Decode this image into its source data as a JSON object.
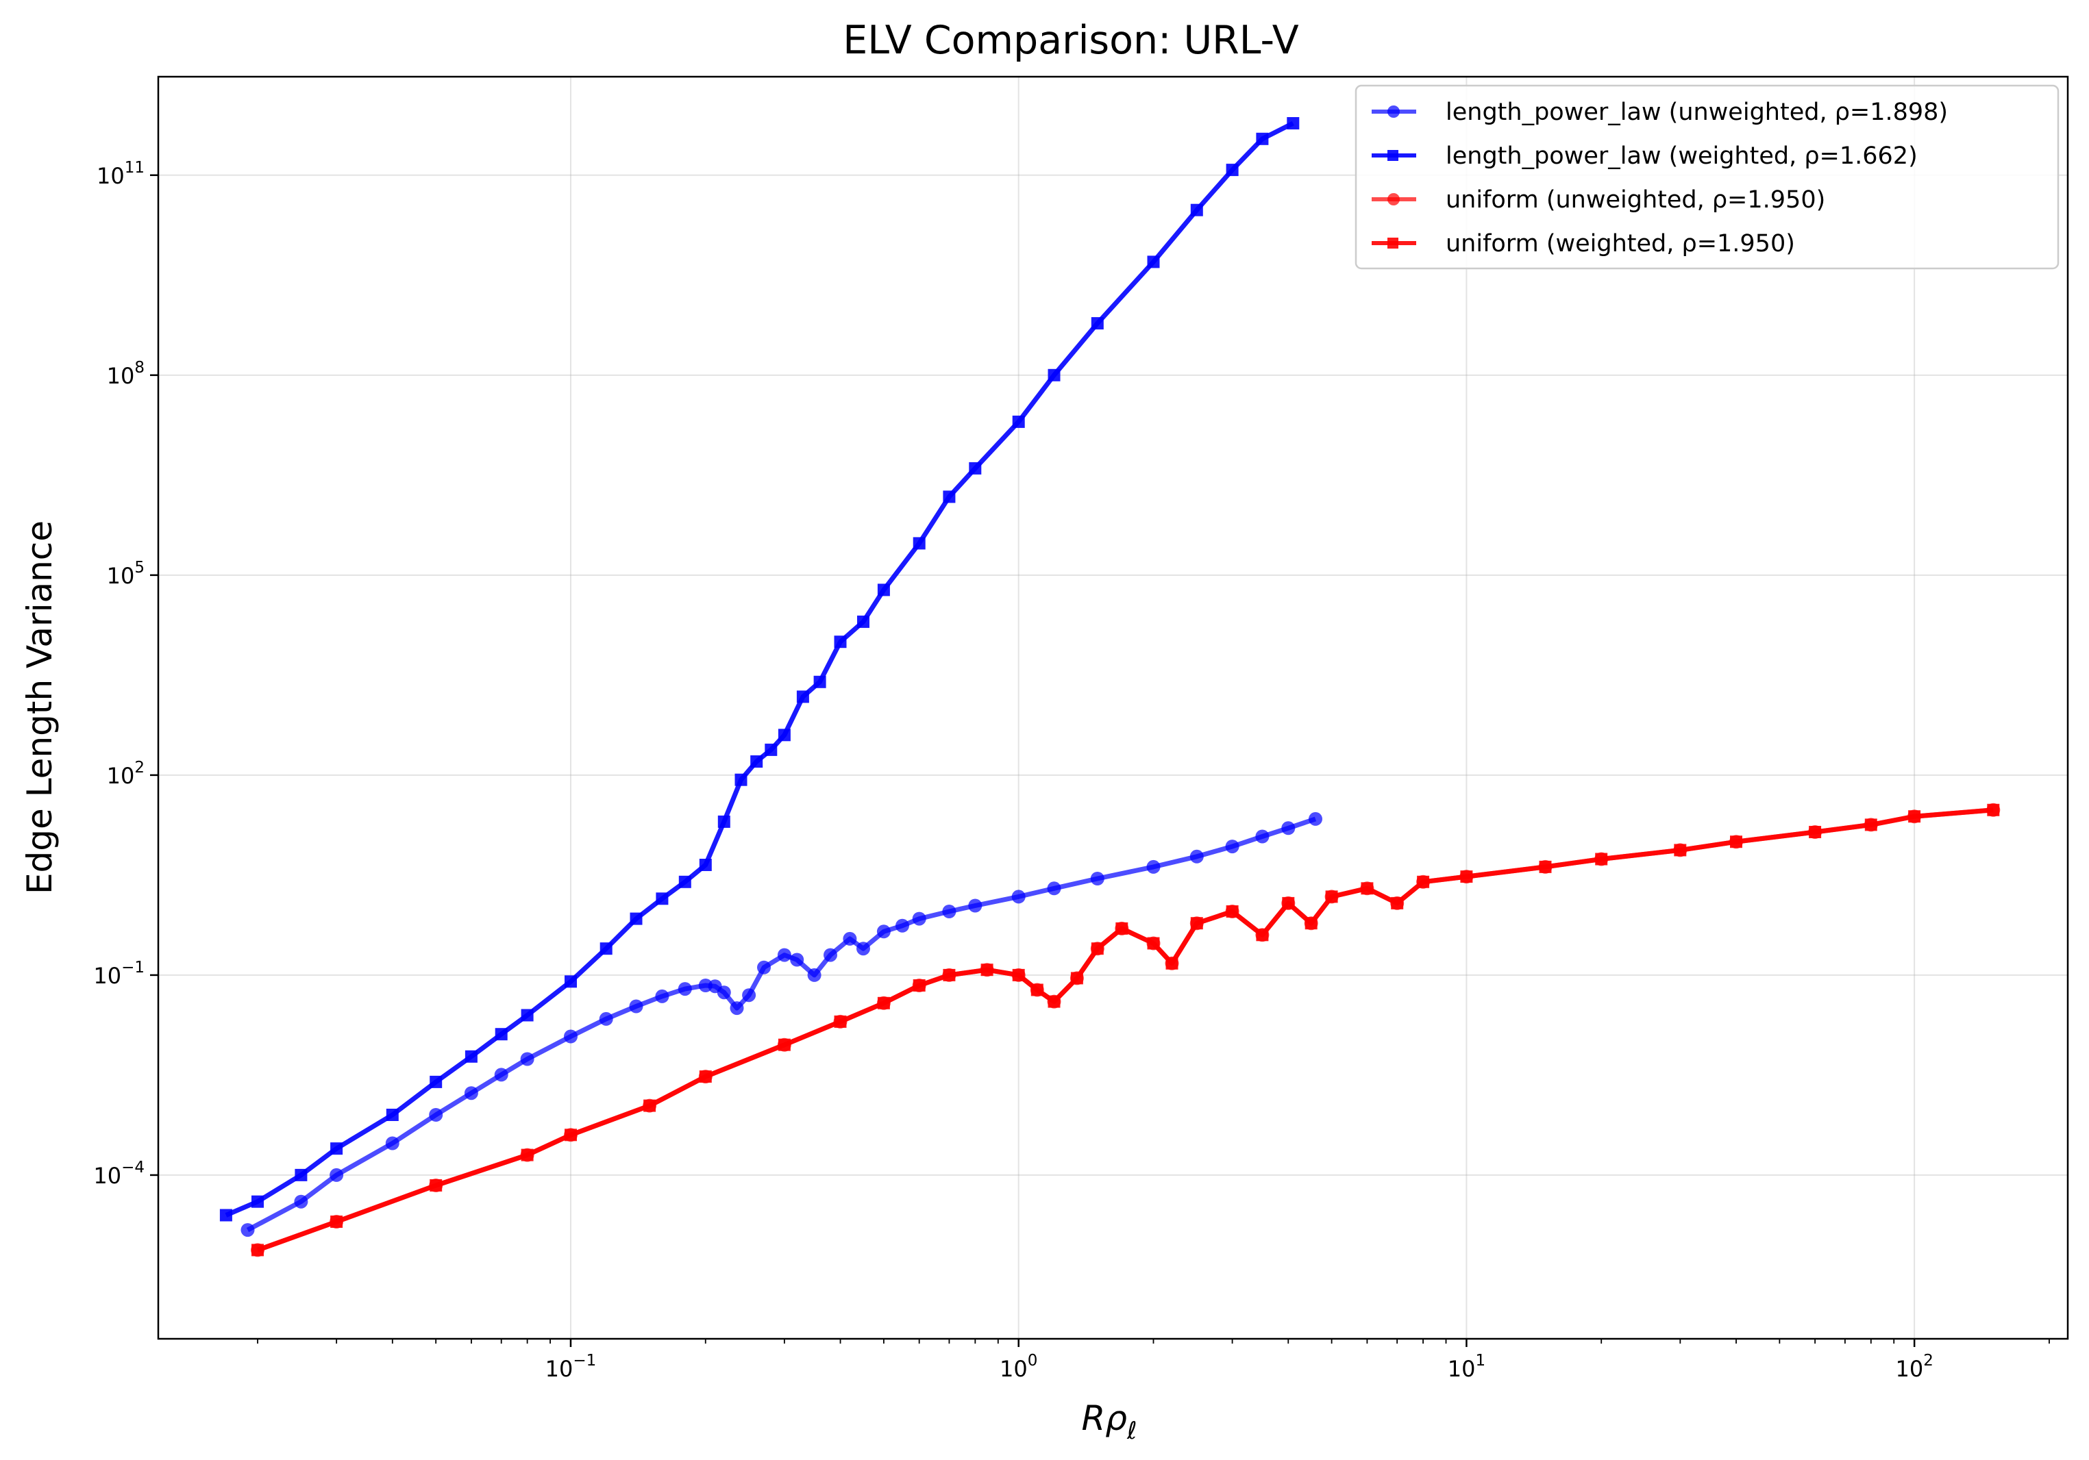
{
  "chart_data": {
    "type": "line",
    "title": "ELV Comparison: URL-V",
    "xlabel_main": "R",
    "xlabel_rho": "ρ",
    "xlabel_sub": "ℓ",
    "ylabel": "Edge Length Variance",
    "xscale": "log",
    "yscale": "log",
    "xlim": [
      0.012,
      220
    ],
    "ylim": [
      3.5e-07,
      3000000000000
    ],
    "grid": true,
    "legend_position": "top-right",
    "x_ticks": [
      {
        "value": 0.1,
        "base": "10",
        "exp": "−1"
      },
      {
        "value": 1,
        "base": "10",
        "exp": "0"
      },
      {
        "value": 10,
        "base": "10",
        "exp": "1"
      },
      {
        "value": 100,
        "base": "10",
        "exp": "2"
      }
    ],
    "y_ticks": [
      {
        "value": 0.0001,
        "base": "10",
        "exp": "−4"
      },
      {
        "value": 0.1,
        "base": "10",
        "exp": "−1"
      },
      {
        "value": 100,
        "base": "10",
        "exp": "2"
      },
      {
        "value": 100000,
        "base": "10",
        "exp": "5"
      },
      {
        "value": 100000000,
        "base": "10",
        "exp": "8"
      },
      {
        "value": 100000000000,
        "base": "10",
        "exp": "11"
      }
    ],
    "series": [
      {
        "name": "length_power_law (unweighted, ρ=1.898)",
        "color": "#0000ff",
        "marker": "circle",
        "alpha": 0.7,
        "x": [
          0.019,
          0.025,
          0.03,
          0.04,
          0.05,
          0.06,
          0.07,
          0.08,
          0.1,
          0.12,
          0.14,
          0.16,
          0.18,
          0.2,
          0.21,
          0.22,
          0.235,
          0.25,
          0.27,
          0.3,
          0.32,
          0.35,
          0.38,
          0.42,
          0.45,
          0.5,
          0.55,
          0.6,
          0.7,
          0.8,
          1.0,
          1.2,
          1.5,
          2.0,
          2.5,
          3.0,
          3.5,
          4.0,
          4.6
        ],
        "y": [
          1.5e-05,
          4e-05,
          0.0001,
          0.0003,
          0.0008,
          0.0017,
          0.0032,
          0.0055,
          0.012,
          0.022,
          0.034,
          0.048,
          0.062,
          0.07,
          0.068,
          0.055,
          0.032,
          0.05,
          0.13,
          0.2,
          0.17,
          0.1,
          0.2,
          0.35,
          0.25,
          0.45,
          0.55,
          0.7,
          0.9,
          1.1,
          1.5,
          2.0,
          2.8,
          4.2,
          6.0,
          8.5,
          12,
          16,
          22
        ]
      },
      {
        "name": "length_power_law (weighted, ρ=1.662)",
        "color": "#0000ff",
        "marker": "square",
        "alpha": 0.9,
        "x": [
          0.017,
          0.02,
          0.025,
          0.03,
          0.04,
          0.05,
          0.06,
          0.07,
          0.08,
          0.1,
          0.12,
          0.14,
          0.16,
          0.18,
          0.2,
          0.22,
          0.24,
          0.26,
          0.28,
          0.3,
          0.33,
          0.36,
          0.4,
          0.45,
          0.5,
          0.6,
          0.7,
          0.8,
          1.0,
          1.2,
          1.5,
          2.0,
          2.5,
          3.0,
          3.5,
          4.1
        ],
        "y": [
          2.5e-05,
          4e-05,
          0.0001,
          0.00025,
          0.0008,
          0.0025,
          0.006,
          0.013,
          0.025,
          0.08,
          0.25,
          0.7,
          1.4,
          2.5,
          4.5,
          20,
          85,
          160,
          240,
          400,
          1500,
          2500,
          10000,
          20000,
          60000,
          300000,
          1500000,
          4000000,
          20000000,
          100000000,
          600000000,
          5000000000,
          30000000000,
          120000000000,
          350000000000,
          600000000000
        ]
      },
      {
        "name": "uniform (unweighted, ρ=1.950)",
        "color": "#ff0000",
        "marker": "circle",
        "alpha": 0.7,
        "x": [
          0.02,
          0.03,
          0.05,
          0.08,
          0.1,
          0.15,
          0.2,
          0.3,
          0.4,
          0.5,
          0.6,
          0.7,
          0.85,
          1.0,
          1.1,
          1.2,
          1.35,
          1.5,
          1.7,
          2.0,
          2.2,
          2.5,
          3.0,
          3.5,
          4.0,
          4.5,
          5.0,
          6.0,
          7.0,
          8.0,
          10,
          15,
          20,
          30,
          40,
          60,
          80,
          100,
          150
        ],
        "y": [
          7.5e-06,
          2e-05,
          7e-05,
          0.0002,
          0.0004,
          0.0011,
          0.003,
          0.009,
          0.02,
          0.038,
          0.07,
          0.1,
          0.12,
          0.1,
          0.06,
          0.04,
          0.09,
          0.25,
          0.5,
          0.3,
          0.15,
          0.6,
          0.9,
          0.4,
          1.2,
          0.6,
          1.5,
          2.0,
          1.2,
          2.5,
          3.0,
          4.2,
          5.5,
          7.5,
          10,
          14,
          18,
          24,
          30
        ]
      },
      {
        "name": "uniform (weighted, ρ=1.950)",
        "color": "#ff0000",
        "marker": "square",
        "alpha": 0.9,
        "x": [
          0.02,
          0.03,
          0.05,
          0.08,
          0.1,
          0.15,
          0.2,
          0.3,
          0.4,
          0.5,
          0.6,
          0.7,
          0.85,
          1.0,
          1.1,
          1.2,
          1.35,
          1.5,
          1.7,
          2.0,
          2.2,
          2.5,
          3.0,
          3.5,
          4.0,
          4.5,
          5.0,
          6.0,
          7.0,
          8.0,
          10,
          15,
          20,
          30,
          40,
          60,
          80,
          100,
          150
        ],
        "y": [
          7.5e-06,
          2e-05,
          7e-05,
          0.0002,
          0.0004,
          0.0011,
          0.003,
          0.009,
          0.02,
          0.038,
          0.07,
          0.1,
          0.12,
          0.1,
          0.06,
          0.04,
          0.09,
          0.25,
          0.5,
          0.3,
          0.15,
          0.6,
          0.9,
          0.4,
          1.2,
          0.6,
          1.5,
          2.0,
          1.2,
          2.5,
          3.0,
          4.2,
          5.5,
          7.5,
          10,
          14,
          18,
          24,
          30
        ]
      }
    ]
  }
}
